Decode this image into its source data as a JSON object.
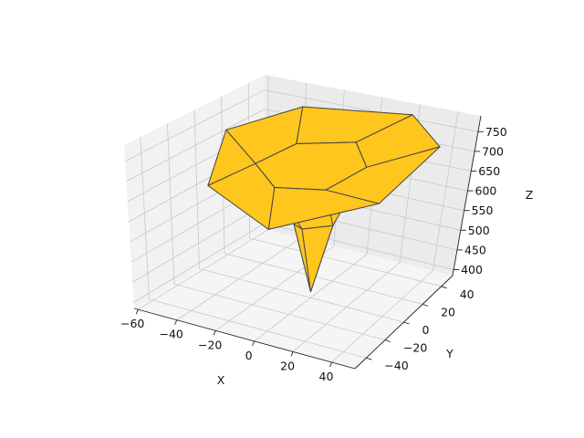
{
  "chart_data": {
    "type": "surface3d",
    "title": "",
    "xlabel": "X",
    "ylabel": "Y",
    "zlabel": "Z",
    "x_ticks": [
      "−60",
      "−40",
      "−20",
      "0",
      "20",
      "40"
    ],
    "y_ticks": [
      "−40",
      "−20",
      "0",
      "20",
      "40"
    ],
    "z_ticks": [
      "400",
      "450",
      "500",
      "550",
      "600",
      "650",
      "700",
      "750"
    ],
    "xlim": [
      -62,
      52
    ],
    "ylim": [
      -52,
      52
    ],
    "zlim": [
      385,
      790
    ],
    "grid": true,
    "face_color": "#ffc61e",
    "edge_color": "#444444",
    "pane_color": "#f2f2f2",
    "gridline_color": "#c8c8c8",
    "mesh": {
      "vertices": [
        {
          "id": "tip",
          "x": 0,
          "y": 0,
          "z": 400
        },
        {
          "id": "s1",
          "x": -10,
          "y": 0,
          "z": 555
        },
        {
          "id": "s2",
          "x": 0,
          "y": -9,
          "z": 570
        },
        {
          "id": "s3",
          "x": 9,
          "y": 3,
          "z": 565
        },
        {
          "id": "s4",
          "x": 0,
          "y": 10,
          "z": 562
        },
        {
          "id": "i1",
          "x": -20,
          "y": 16,
          "z": 716
        },
        {
          "id": "i2",
          "x": -24,
          "y": -10,
          "z": 708
        },
        {
          "id": "i3",
          "x": -5,
          "y": -24,
          "z": 692
        },
        {
          "id": "i4",
          "x": 20,
          "y": -22,
          "z": 706
        },
        {
          "id": "i5",
          "x": 24,
          "y": 5,
          "z": 718
        },
        {
          "id": "i6",
          "x": 6,
          "y": 24,
          "z": 730
        },
        {
          "id": "o1",
          "x": -32,
          "y": 38,
          "z": 760
        },
        {
          "id": "o2",
          "x": -50,
          "y": 6,
          "z": 740
        },
        {
          "id": "o3",
          "x": -32,
          "y": -35,
          "z": 690
        },
        {
          "id": "o4",
          "x": 8,
          "y": -50,
          "z": 650
        },
        {
          "id": "o5",
          "x": 45,
          "y": -18,
          "z": 690
        },
        {
          "id": "o6",
          "x": 46,
          "y": 30,
          "z": 745
        },
        {
          "id": "o7",
          "x": 18,
          "y": 50,
          "z": 765
        }
      ],
      "faces": [
        [
          "tip",
          "s1",
          "s2"
        ],
        [
          "tip",
          "s2",
          "s3"
        ],
        [
          "tip",
          "s3",
          "s4"
        ],
        [
          "tip",
          "s4",
          "s1"
        ],
        [
          "s1",
          "s2",
          "i3",
          "i2"
        ],
        [
          "s2",
          "s3",
          "i4",
          "i3"
        ],
        [
          "s3",
          "s4",
          "i6",
          "i5"
        ],
        [
          "s4",
          "s1",
          "i1",
          "i6"
        ],
        [
          "o1",
          "o2",
          "i2",
          "i1"
        ],
        [
          "o2",
          "o3",
          "i2"
        ],
        [
          "o3",
          "o4",
          "i3",
          "i2"
        ],
        [
          "o4",
          "o5",
          "i4",
          "i3"
        ],
        [
          "o5",
          "o6",
          "i5",
          "i4"
        ],
        [
          "o6",
          "o7",
          "i6",
          "i5"
        ],
        [
          "o7",
          "o1",
          "i1",
          "i6"
        ],
        [
          "i1",
          "i2",
          "i3",
          "i4",
          "i5",
          "i6"
        ]
      ]
    }
  }
}
